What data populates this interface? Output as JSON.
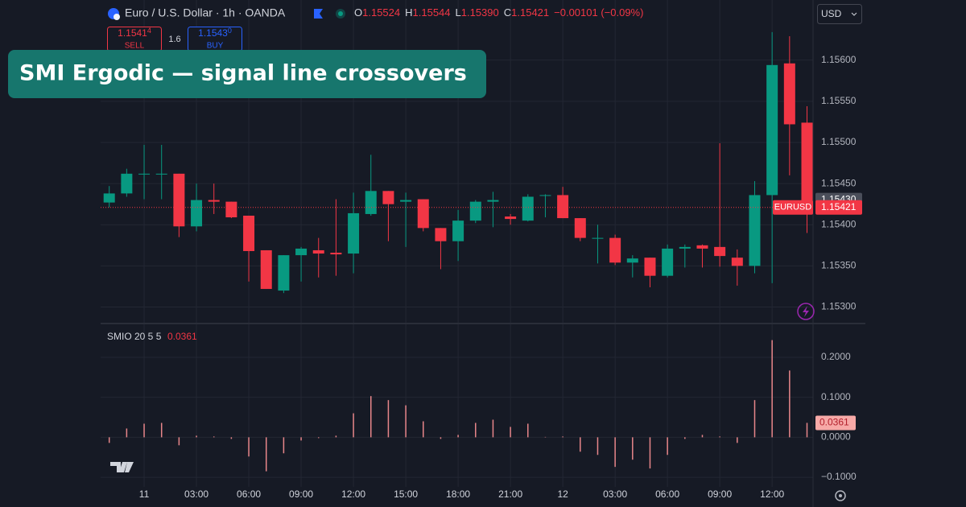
{
  "header": {
    "symbol": "Euro / U.S. Dollar · 1h · OANDA",
    "o_label": "O",
    "o": "1.15524",
    "h_label": "H",
    "h": "1.15544",
    "l_label": "L",
    "l": "1.15390",
    "c_label": "C",
    "c": "1.15421",
    "change": "−0.00101 (−0.09%)"
  },
  "trade": {
    "sell_price": "1.1541",
    "sell_pip": "4",
    "sell": "SELL",
    "spread": "1.6",
    "buy_price": "1.1543",
    "buy_pip": "0",
    "buy": "BUY"
  },
  "currency": "USD",
  "banner": "SMI Ergodic  —  signal line crossovers",
  "chart_data": [
    {
      "type": "candlestick",
      "categories": [
        null,
        null,
        "11",
        null,
        null,
        "03:00",
        null,
        null,
        "06:00",
        null,
        null,
        "09:00",
        null,
        null,
        "12:00",
        null,
        null,
        "15:00",
        null,
        null,
        "18:00",
        null,
        null,
        "21:00",
        null,
        null,
        "12",
        null,
        null,
        "03:00",
        null,
        null,
        "06:00",
        null,
        null,
        "09:00",
        null,
        null,
        "12:00",
        null,
        null
      ],
      "open": [
        1.15427,
        1.15438,
        1.15461,
        1.15461,
        1.15462,
        1.15398,
        1.1543,
        1.15428,
        1.15411,
        1.15369,
        1.1532,
        1.15363,
        1.15369,
        1.15366,
        1.15365,
        1.15413,
        1.15441,
        1.15428,
        1.15431,
        1.15396,
        1.1538,
        1.15405,
        1.15428,
        1.1541,
        1.15405,
        1.15435,
        1.15436,
        1.15408,
        1.15383,
        1.15384,
        1.15354,
        1.1536,
        1.15338,
        1.15371,
        1.15375,
        1.15373,
        1.1536,
        1.1535,
        1.15436,
        1.15596,
        1.15524
      ],
      "high": [
        1.15447,
        1.15468,
        1.15497,
        1.15497,
        1.15462,
        1.1545,
        1.1545,
        1.15428,
        1.15411,
        1.15369,
        1.15363,
        1.15373,
        1.15384,
        1.15431,
        1.15439,
        1.15485,
        1.15441,
        1.15439,
        1.15431,
        1.15396,
        1.15418,
        1.1543,
        1.1544,
        1.15413,
        1.15437,
        1.15437,
        1.15446,
        1.15408,
        1.154,
        1.15388,
        1.15363,
        1.1536,
        1.15376,
        1.15376,
        1.15376,
        1.15499,
        1.1537,
        1.15453,
        1.15634,
        1.15629,
        1.15544
      ],
      "low": [
        1.15421,
        1.15434,
        1.15431,
        1.15431,
        1.15385,
        1.15392,
        1.15413,
        1.15408,
        1.15331,
        1.15322,
        1.15317,
        1.15331,
        1.15336,
        1.15338,
        1.15341,
        1.15411,
        1.1538,
        1.15373,
        1.15392,
        1.15346,
        1.15356,
        1.15402,
        1.15397,
        1.154,
        1.15404,
        1.15409,
        1.15408,
        1.1538,
        1.15353,
        1.15351,
        1.15336,
        1.15324,
        1.15336,
        1.15348,
        1.15348,
        1.15349,
        1.15326,
        1.15341,
        1.15329,
        1.1546,
        1.1539
      ],
      "close": [
        1.15438,
        1.15462,
        1.15462,
        1.15462,
        1.15398,
        1.1543,
        1.15428,
        1.15409,
        1.15368,
        1.15322,
        1.15363,
        1.15371,
        1.15365,
        1.15364,
        1.15414,
        1.15441,
        1.15425,
        1.1543,
        1.15396,
        1.1538,
        1.15405,
        1.15428,
        1.1543,
        1.15407,
        1.15434,
        1.15436,
        1.15408,
        1.15384,
        1.15384,
        1.15354,
        1.15359,
        1.15338,
        1.15371,
        1.15373,
        1.15371,
        1.15362,
        1.1535,
        1.15436,
        1.15594,
        1.15522,
        1.15421
      ],
      "up_color": "#089981",
      "down_color": "#f23645",
      "ylim": [
        1.1528,
        1.15673
      ],
      "yticks": [
        {
          "value": 1.153,
          "label": "1.15300"
        },
        {
          "value": 1.1535,
          "label": "1.15350"
        },
        {
          "value": 1.154,
          "label": "1.15400"
        },
        {
          "value": 1.1545,
          "label": "1.15450"
        },
        {
          "value": 1.155,
          "label": "1.15500"
        },
        {
          "value": 1.1555,
          "label": "1.15550"
        },
        {
          "value": 1.156,
          "label": "1.15600"
        }
      ],
      "marker_price": {
        "value": 1.1543,
        "label": "1.15430"
      },
      "last_price": 1.15421,
      "symbol_tag": "EURUSD",
      "grid": true
    },
    {
      "type": "bar",
      "title": "SMIO 20 5 5",
      "values": [
        -0.014,
        0.022,
        0.034,
        0.036,
        -0.02,
        0.004,
        0.002,
        -0.004,
        -0.048,
        -0.085,
        -0.04,
        -0.008,
        -0.002,
        0.004,
        0.06,
        0.103,
        0.093,
        0.08,
        0.04,
        -0.004,
        0.006,
        0.036,
        0.044,
        0.026,
        0.034,
        0.001,
        0.002,
        -0.036,
        -0.044,
        -0.074,
        -0.056,
        -0.078,
        -0.044,
        -0.004,
        0.006,
        0.002,
        -0.014,
        0.093,
        0.243,
        0.167,
        0.0361
      ],
      "color": "#e8868a",
      "ylim": [
        -0.124,
        0.2845
      ],
      "yticks": [
        {
          "value": -0.1,
          "label": "−0.1000"
        },
        {
          "value": 0,
          "label": "0.0000"
        },
        {
          "value": 0.1,
          "label": "0.1000"
        },
        {
          "value": 0.2,
          "label": "0.2000"
        }
      ],
      "grid": true
    }
  ]
}
